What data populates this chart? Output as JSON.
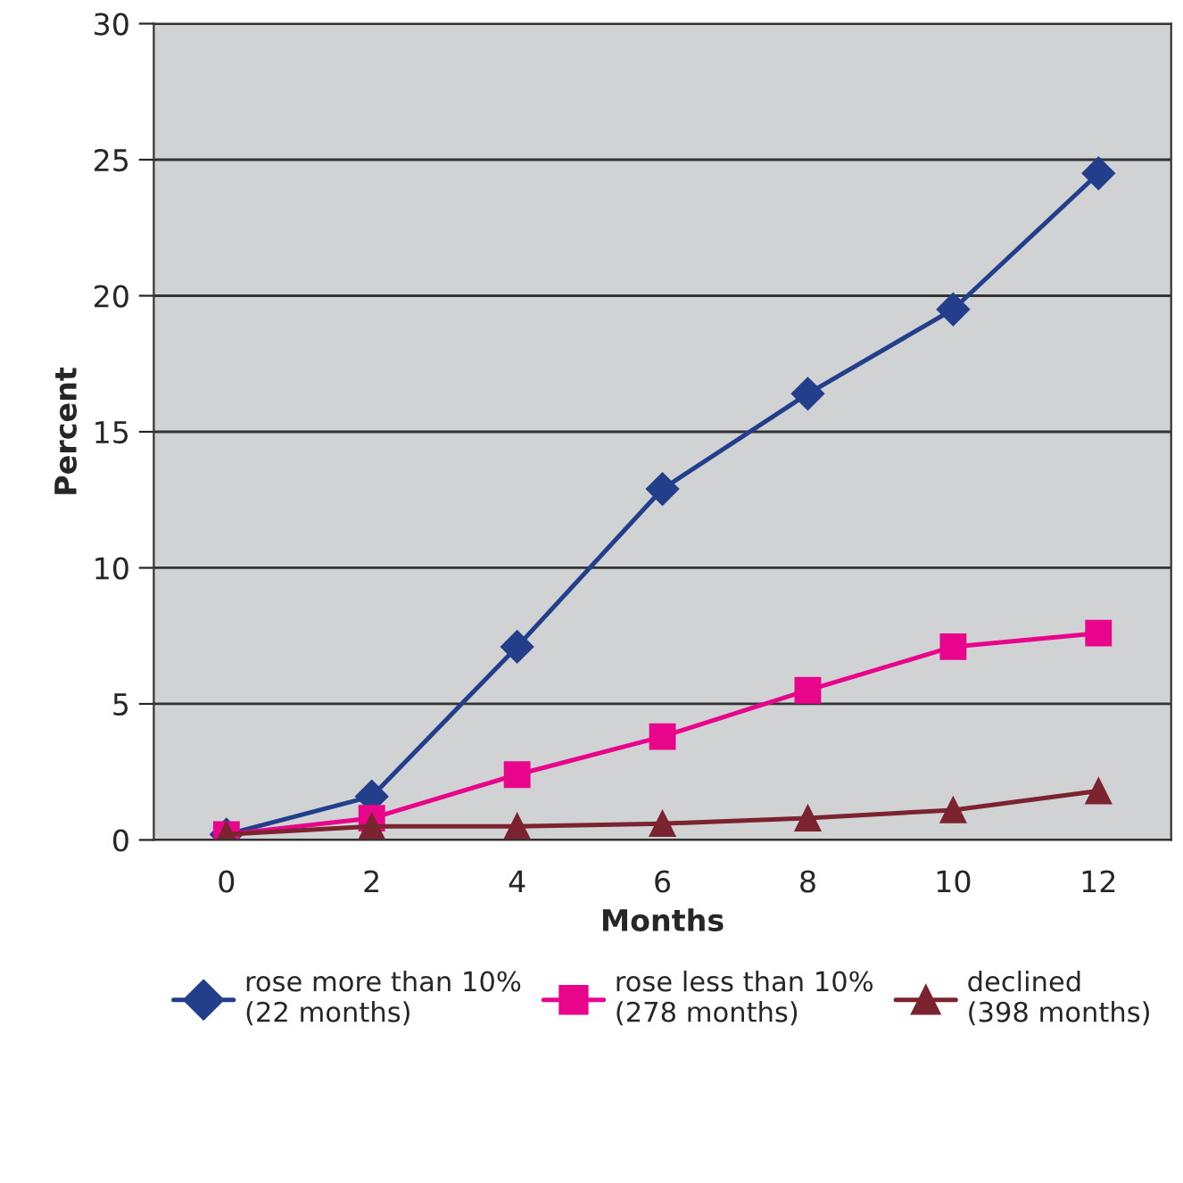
{
  "chart_data": {
    "type": "line",
    "xlabel": "Months",
    "ylabel": "Percent",
    "categories": [
      "0",
      "2",
      "4",
      "6",
      "8",
      "10",
      "12"
    ],
    "series": [
      {
        "name": "rose more than 10%\n(22 months)",
        "color": "#233e8b",
        "marker": "diamond",
        "values": [
          0.2,
          1.6,
          7.1,
          12.9,
          16.4,
          19.5,
          24.5
        ]
      },
      {
        "name": "rose less than 10%\n(278 months)",
        "color": "#e8058c",
        "marker": "square",
        "values": [
          0.2,
          0.8,
          2.4,
          3.8,
          5.5,
          7.1,
          7.6
        ]
      },
      {
        "name": "declined\n(398 months)",
        "color": "#7b2430",
        "marker": "triangle",
        "values": [
          0.2,
          0.5,
          0.5,
          0.6,
          0.8,
          1.1,
          1.8
        ]
      }
    ],
    "ylim": [
      0,
      30
    ],
    "yticks": [
      0,
      5,
      10,
      15,
      20,
      25,
      30
    ],
    "grid": "y",
    "legend": "bottom",
    "line_style": "solid"
  }
}
